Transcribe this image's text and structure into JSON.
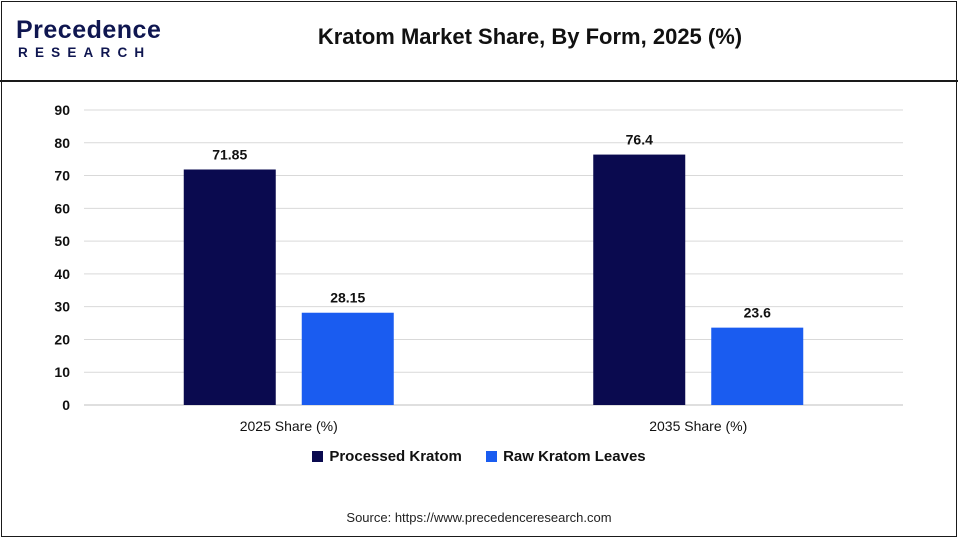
{
  "logo": {
    "word": "Precedence",
    "sub": "RESEARCH"
  },
  "title": "Kratom Market Share, By Form, 2025 (%)",
  "source": "Source: https://www.precedenceresearch.com",
  "colors": {
    "processed": "#0a0a4f",
    "raw": "#1a5cf0",
    "grid": "#d9d9d9",
    "brand": "#0f1650"
  },
  "chart_data": {
    "type": "bar",
    "title": "Kratom Market Share, By Form, 2025 (%)",
    "categories": [
      "2025 Share (%)",
      "2035 Share (%)"
    ],
    "series": [
      {
        "name": "Processed Kratom",
        "values": [
          71.85,
          76.4
        ],
        "labels": [
          "71.85",
          "76.4"
        ]
      },
      {
        "name": "Raw Kratom Leaves",
        "values": [
          28.15,
          23.6
        ],
        "labels": [
          "28.15",
          "23.6"
        ]
      }
    ],
    "ylim": [
      0,
      90
    ],
    "yticks": [
      0,
      10,
      20,
      30,
      40,
      50,
      60,
      70,
      80,
      90
    ],
    "grid": true,
    "legend_position": "bottom"
  }
}
